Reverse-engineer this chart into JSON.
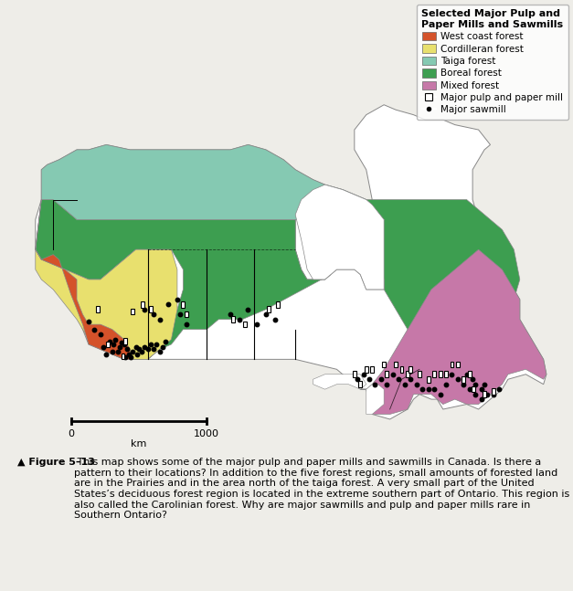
{
  "title": "Selected Major Pulp and\nPaper Mills and Sawmills",
  "forest_colors": {
    "west_coast": "#d4522a",
    "cordilleran": "#e8e06e",
    "taiga": "#85c9b2",
    "boreal": "#3d9e50",
    "mixed": "#c678a8",
    "water": "#ffffff",
    "land": "#ffffff"
  },
  "legend_entries": [
    {
      "label": "West coast forest",
      "color": "#d4522a",
      "type": "patch"
    },
    {
      "label": "Cordilleran forest",
      "color": "#e8e06e",
      "type": "patch"
    },
    {
      "label": "Taiga forest",
      "color": "#85c9b2",
      "type": "patch"
    },
    {
      "label": "Boreal forest",
      "color": "#3d9e50",
      "type": "patch"
    },
    {
      "label": "Mixed forest",
      "color": "#c678a8",
      "type": "patch"
    },
    {
      "label": "Major pulp and paper mill",
      "color": "white",
      "type": "square"
    },
    {
      "label": "Major sawmill",
      "color": "black",
      "type": "dot"
    }
  ],
  "caption_bold": "▲ Figure 5–13",
  "caption_text": " This map shows some of the major pulp and paper mills and sawmills in Canada. Is there a pattern to their locations? In addition to the five forest regions, small amounts of forested land are in the Prairies and in the area north of the taiga forest. A very small part of the United States’s deciduous forest region is located in the extreme southern part of Ontario. This region is also called the Carolinian forest. Why are major sawmills and pulp and paper mills rare in Southern Ontario?",
  "background_color": "#eeede8",
  "border_color": "#888888",
  "map_bg": "#ffffff"
}
